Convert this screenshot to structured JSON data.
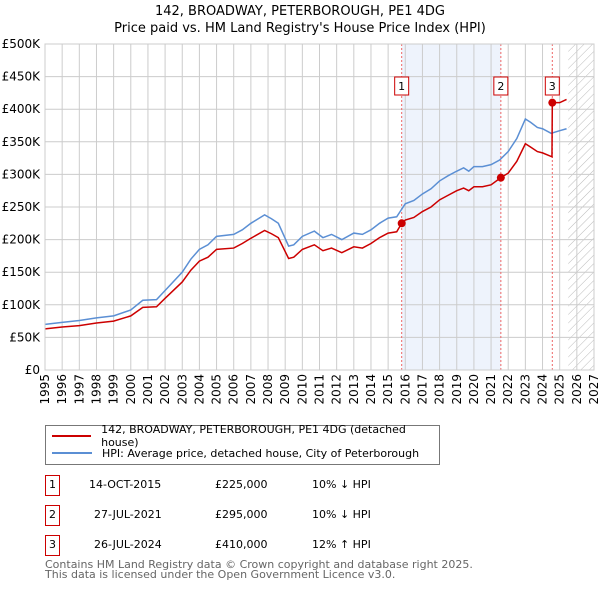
{
  "chart_data": {
    "type": "line",
    "title": "142, BROADWAY, PETERBOROUGH, PE1 4DG",
    "subtitle": "Price paid vs. HM Land Registry's House Price Index (HPI)",
    "xlim": [
      1995,
      2027
    ],
    "ylim": [
      0,
      500000
    ],
    "x_ticks": [
      "1995",
      "1996",
      "1997",
      "1998",
      "1999",
      "2000",
      "2001",
      "2002",
      "2003",
      "2004",
      "2005",
      "2006",
      "2007",
      "2008",
      "2009",
      "2010",
      "2011",
      "2012",
      "2013",
      "2014",
      "2015",
      "2016",
      "2017",
      "2018",
      "2019",
      "2020",
      "2021",
      "2022",
      "2023",
      "2024",
      "2025",
      "2026",
      "2027"
    ],
    "y_ticks": [
      {
        "v": 0,
        "l": "£0"
      },
      {
        "v": 50000,
        "l": "£50K"
      },
      {
        "v": 100000,
        "l": "£100K"
      },
      {
        "v": 150000,
        "l": "£150K"
      },
      {
        "v": 200000,
        "l": "£200K"
      },
      {
        "v": 250000,
        "l": "£250K"
      },
      {
        "v": 300000,
        "l": "£300K"
      },
      {
        "v": 350000,
        "l": "£350K"
      },
      {
        "v": 400000,
        "l": "£400K"
      },
      {
        "v": 450000,
        "l": "£450K"
      },
      {
        "v": 500000,
        "l": "£500K"
      }
    ],
    "grid": true,
    "shaded_range": [
      2015.79,
      2021.57
    ],
    "hatched_range": [
      2025.5,
      2027
    ],
    "series": [
      {
        "name": "142, BROADWAY, PETERBOROUGH, PE1 4DG (detached house)",
        "color": "#cc0000",
        "x": [
          1995,
          1996,
          1997,
          1998,
          1999,
          2000,
          2000.7,
          2001.5,
          2002,
          2003,
          2003.5,
          2004,
          2004.5,
          2005,
          2006,
          2006.5,
          2007,
          2007.8,
          2008.2,
          2008.6,
          2009.2,
          2009.5,
          2010,
          2010.7,
          2011.2,
          2011.7,
          2012.3,
          2013,
          2013.5,
          2014,
          2014.5,
          2015,
          2015.5,
          2015.79,
          2016,
          2016.5,
          2017,
          2017.5,
          2018,
          2018.5,
          2019,
          2019.4,
          2019.7,
          2020,
          2020.5,
          2021,
          2021.57,
          2022,
          2022.5,
          2023,
          2023.3,
          2023.7,
          2024,
          2024.55,
          2024.57,
          2025,
          2025.4
        ],
        "y": [
          63000,
          66000,
          68000,
          72000,
          75000,
          83000,
          96000,
          97000,
          110000,
          135000,
          153000,
          167000,
          173000,
          185000,
          187000,
          194000,
          202000,
          214000,
          209000,
          203000,
          171000,
          173000,
          185000,
          192000,
          183000,
          187000,
          180000,
          189000,
          187000,
          194000,
          203000,
          210000,
          212000,
          225000,
          230000,
          234000,
          243000,
          250000,
          261000,
          268000,
          275000,
          279000,
          275000,
          281000,
          281000,
          284000,
          295000,
          302000,
          320000,
          347000,
          342000,
          335000,
          333000,
          327000,
          410000,
          410000,
          415000
        ]
      },
      {
        "name": "HPI: Average price, detached house, City of Peterborough",
        "color": "#5b8fd4",
        "x": [
          1995,
          1996,
          1997,
          1998,
          1999,
          2000,
          2000.7,
          2001.5,
          2002,
          2003,
          2003.5,
          2004,
          2004.5,
          2005,
          2006,
          2006.5,
          2007,
          2007.8,
          2008.2,
          2008.6,
          2009.2,
          2009.5,
          2010,
          2010.7,
          2011.2,
          2011.7,
          2012.3,
          2013,
          2013.5,
          2014,
          2014.5,
          2015,
          2015.5,
          2016,
          2016.5,
          2017,
          2017.5,
          2018,
          2018.5,
          2019,
          2019.4,
          2019.7,
          2020,
          2020.5,
          2021,
          2021.5,
          2022,
          2022.5,
          2023,
          2023.3,
          2023.7,
          2024,
          2024.5,
          2025,
          2025.4
        ],
        "y": [
          70000,
          73000,
          76000,
          80000,
          83000,
          92000,
          107000,
          108000,
          122000,
          150000,
          170000,
          185000,
          192000,
          205000,
          208000,
          215000,
          225000,
          238000,
          232000,
          225000,
          190000,
          192000,
          205000,
          213000,
          203000,
          208000,
          200000,
          210000,
          208000,
          215000,
          225000,
          233000,
          235000,
          255000,
          260000,
          270000,
          278000,
          290000,
          298000,
          305000,
          310000,
          305000,
          312000,
          312000,
          315000,
          322000,
          335000,
          355000,
          385000,
          380000,
          372000,
          370000,
          363000,
          367000,
          370000
        ]
      }
    ],
    "sales": [
      {
        "label": "1",
        "x": 2015.79,
        "y": 225000
      },
      {
        "label": "2",
        "x": 2021.57,
        "y": 295000
      },
      {
        "label": "3",
        "x": 2024.57,
        "y": 410000
      }
    ]
  },
  "transactions": [
    {
      "num": "1",
      "date": "14-OCT-2015",
      "price": "£225,000",
      "hpi": "10% ↓ HPI"
    },
    {
      "num": "2",
      "date": "27-JUL-2021",
      "price": "£295,000",
      "hpi": "10% ↓ HPI"
    },
    {
      "num": "3",
      "date": "26-JUL-2024",
      "price": "£410,000",
      "hpi": "12% ↑ HPI"
    }
  ],
  "footer": [
    "Contains HM Land Registry data © Crown copyright and database right 2025.",
    "This data is licensed under the Open Government Licence v3.0."
  ]
}
